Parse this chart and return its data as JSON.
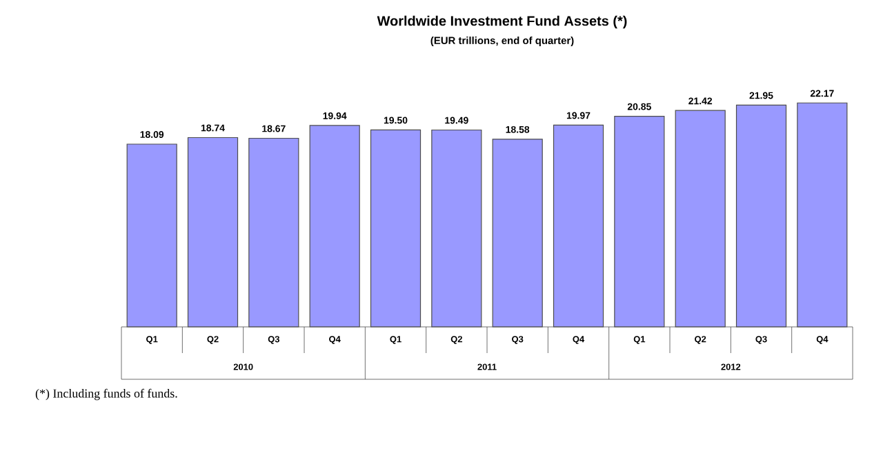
{
  "chart_data": {
    "type": "bar",
    "title": "Worldwide Investment Fund Assets (*)",
    "subtitle": "(EUR trillions, end of quarter)",
    "categories": [
      "Q1",
      "Q2",
      "Q3",
      "Q4",
      "Q1",
      "Q2",
      "Q3",
      "Q4",
      "Q1",
      "Q2",
      "Q3",
      "Q4"
    ],
    "values": [
      18.09,
      18.74,
      18.67,
      19.94,
      19.5,
      19.49,
      18.58,
      19.97,
      20.85,
      21.42,
      21.95,
      22.17
    ],
    "color": "#9999ff",
    "value_labels": [
      "18.09",
      "18.74",
      "18.67",
      "19.94",
      "19.50",
      "19.49",
      "18.58",
      "19.97",
      "20.85",
      "21.42",
      "21.95",
      "22.17"
    ],
    "annotations": [
      "2010",
      "2011",
      "2012",
      "(*) Including funds of funds."
    ]
  }
}
